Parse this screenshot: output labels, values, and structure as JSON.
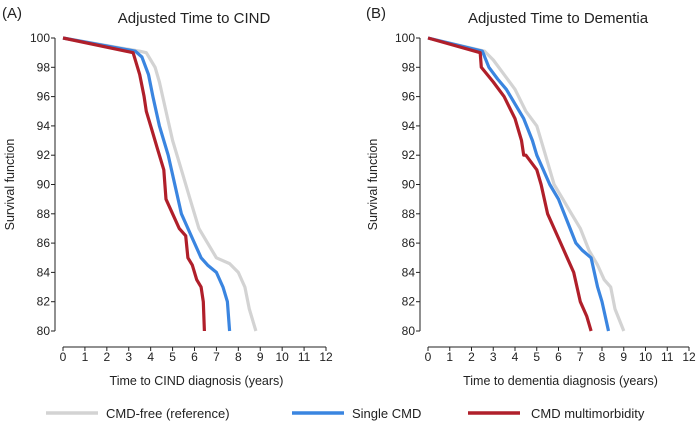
{
  "chart_data": [
    {
      "type": "line",
      "panel_label": "(A)",
      "title": "Adjusted Time to CIND",
      "xlabel": "Time to CIND diagnosis (years)",
      "ylabel": "Survival function",
      "xlim": [
        0,
        12
      ],
      "ylim": [
        80,
        100
      ],
      "xticks": [
        "0",
        "1",
        "2",
        "3",
        "4",
        "5",
        "6",
        "7",
        "8",
        "9",
        "10",
        "11",
        "12"
      ],
      "yticks": [
        "80",
        "82",
        "84",
        "86",
        "88",
        "90",
        "92",
        "94",
        "96",
        "98",
        "100"
      ],
      "grid": false,
      "series": [
        {
          "name": "CMD-free (reference)",
          "color": "#d3d3d3",
          "x": [
            0,
            3.5,
            3.8,
            4.0,
            4.2,
            4.4,
            4.7,
            5.0,
            5.4,
            5.8,
            6.2,
            6.6,
            7.0,
            7.6,
            8.0,
            8.3,
            8.5,
            8.8
          ],
          "y": [
            100,
            99.1,
            99.0,
            98.5,
            98.0,
            97.0,
            95.0,
            93.0,
            91.0,
            89.0,
            87.0,
            86.0,
            85.0,
            84.6,
            84.0,
            83.0,
            81.5,
            80.0
          ]
        },
        {
          "name": "Single CMD",
          "color": "#3a85e0",
          "x": [
            0,
            3.3,
            3.6,
            3.9,
            4.1,
            4.4,
            4.8,
            5.1,
            5.4,
            5.7,
            6.0,
            6.3,
            6.6,
            7.0,
            7.3,
            7.5,
            7.6
          ],
          "y": [
            100,
            99.1,
            98.7,
            97.5,
            96.0,
            94.0,
            92.0,
            90.0,
            88.0,
            87.0,
            86.0,
            85.0,
            84.5,
            84.0,
            83.0,
            82.0,
            80.0
          ]
        },
        {
          "name": "CMD multimorbidity",
          "color": "#b01f2a",
          "x": [
            0,
            3.2,
            3.5,
            3.7,
            3.8,
            4.0,
            4.3,
            4.6,
            4.65,
            4.7,
            5.0,
            5.3,
            5.6,
            5.7,
            5.9,
            6.1,
            6.3,
            6.4,
            6.45
          ],
          "y": [
            100,
            99.0,
            97.5,
            96.0,
            95.0,
            94.0,
            92.5,
            91.0,
            90.0,
            89.0,
            88.0,
            87.0,
            86.5,
            85.0,
            84.5,
            83.5,
            83.0,
            82.0,
            80.0
          ]
        }
      ]
    },
    {
      "type": "line",
      "panel_label": "(B)",
      "title": "Adjusted Time to Dementia",
      "xlabel": "Time to dementia diagnosis (years)",
      "ylabel": "Survival function",
      "xlim": [
        0,
        12
      ],
      "ylim": [
        80,
        100
      ],
      "xticks": [
        "0",
        "1",
        "2",
        "3",
        "4",
        "5",
        "6",
        "7",
        "8",
        "9",
        "10",
        "11",
        "12"
      ],
      "yticks": [
        "80",
        "82",
        "84",
        "86",
        "88",
        "90",
        "92",
        "94",
        "96",
        "98",
        "100"
      ],
      "grid": false,
      "series": [
        {
          "name": "CMD-free (reference)",
          "color": "#d3d3d3",
          "x": [
            0,
            2.6,
            3.0,
            3.5,
            4.0,
            4.5,
            5.0,
            5.4,
            5.8,
            6.2,
            6.6,
            7.0,
            7.4,
            7.8,
            8.1,
            8.4,
            8.6,
            9.0
          ],
          "y": [
            100,
            99.1,
            98.5,
            97.5,
            96.5,
            95.0,
            94.0,
            92.0,
            90.0,
            89.0,
            88.0,
            87.0,
            85.5,
            84.5,
            83.5,
            83.0,
            81.5,
            80.0
          ]
        },
        {
          "name": "Single CMD",
          "color": "#3a85e0",
          "x": [
            0,
            2.5,
            2.8,
            3.2,
            3.6,
            4.0,
            4.4,
            4.8,
            5.0,
            5.3,
            5.6,
            6.0,
            6.4,
            6.8,
            7.1,
            7.5,
            7.8,
            8.0,
            8.3
          ],
          "y": [
            100,
            99.1,
            98.0,
            97.2,
            96.5,
            95.5,
            94.5,
            93.0,
            92.0,
            91.0,
            90.0,
            89.0,
            87.5,
            86.0,
            85.5,
            85.0,
            83.0,
            82.0,
            80.0
          ]
        },
        {
          "name": "CMD multimorbidity",
          "color": "#b01f2a",
          "x": [
            0,
            2.4,
            2.45,
            3.0,
            3.5,
            4.0,
            4.3,
            4.4,
            4.5,
            5.0,
            5.2,
            5.5,
            5.8,
            6.1,
            6.4,
            6.7,
            7.0,
            7.3,
            7.5
          ],
          "y": [
            100,
            99.0,
            98.0,
            97.0,
            96.0,
            94.5,
            93.0,
            92.0,
            92.0,
            91.0,
            90.0,
            88.0,
            87.0,
            86.0,
            85.0,
            84.0,
            82.0,
            81.0,
            80.0
          ]
        }
      ]
    }
  ],
  "legend": {
    "position": "bottom",
    "items": [
      {
        "label": "CMD-free (reference)",
        "color": "#d3d3d3"
      },
      {
        "label": "Single CMD",
        "color": "#3a85e0"
      },
      {
        "label": "CMD multimorbidity",
        "color": "#b01f2a"
      }
    ]
  }
}
